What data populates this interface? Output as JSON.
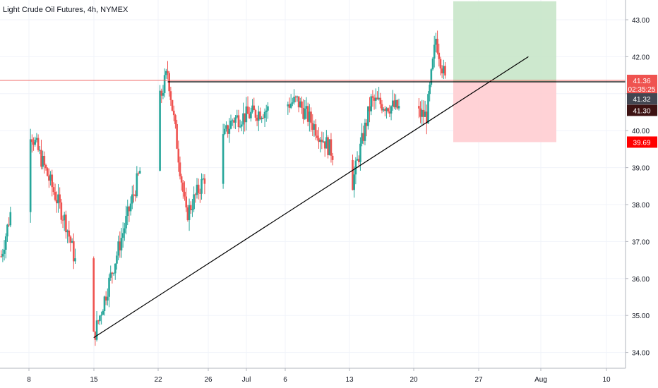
{
  "chart_data": {
    "type": "candlestick",
    "title": "Light Crude Oil Futures, 4h, NYMEX",
    "x_ticks": [
      "8",
      "15",
      "22",
      "26",
      "Jul",
      "6",
      "13",
      "20",
      "27",
      "Aug",
      "10"
    ],
    "y_ticks": [
      "43.00",
      "42.00",
      "41.00",
      "40.00",
      "39.00",
      "38.00",
      "37.00",
      "36.00",
      "35.00",
      "34.00"
    ],
    "y_range": [
      33.6,
      43.5
    ],
    "price_tags": [
      {
        "value": 41.36,
        "label": "41.36",
        "color": "#ef5350"
      },
      {
        "value": 41.13,
        "label": "02:35:25",
        "color": "#ef5350"
      },
      {
        "value": 40.86,
        "label": "41.32",
        "color": "#434651"
      },
      {
        "value": 40.55,
        "label": "41.30",
        "color": "#3d1212"
      },
      {
        "value": 39.69,
        "label": "39.69",
        "color": "#ff0000"
      }
    ],
    "current_price": 41.36,
    "resistance_level": 41.32,
    "trendline": {
      "from": {
        "x": "Jun 15",
        "y": 34.4
      },
      "to": {
        "x": "Aug 1",
        "y": 42.0
      }
    },
    "position": {
      "entry": 41.32,
      "target": 43.5,
      "stop": 39.69
    },
    "key_points": [
      {
        "x": "Jun 5",
        "close": 36.6
      },
      {
        "x": "Jun 8",
        "close": 40.1
      },
      {
        "x": "Jun 12",
        "close": 37.5
      },
      {
        "x": "Jun 15",
        "low": 34.4
      },
      {
        "x": "Jun 23",
        "high": 41.6
      },
      {
        "x": "Jun 25",
        "close": 37.7
      },
      {
        "x": "Jun 30",
        "close": 40.3
      },
      {
        "x": "Jul 7",
        "close": 40.8
      },
      {
        "x": "Jul 13",
        "low": 38.6
      },
      {
        "x": "Jul 15",
        "close": 40.8
      },
      {
        "x": "Jul 21",
        "close": 40.4
      },
      {
        "x": "Jul 22",
        "high": 42.5
      },
      {
        "x": "Jul 23",
        "close": 41.36
      }
    ],
    "colors": {
      "up": "#26a69a",
      "down": "#ef5350",
      "target_zone": "#c8e6c9",
      "stop_zone": "#ffcdd2"
    }
  }
}
